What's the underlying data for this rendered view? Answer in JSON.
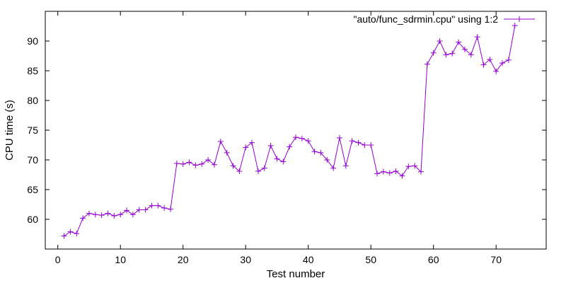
{
  "chart_data": {
    "type": "line",
    "xlabel": "Test number",
    "ylabel": "CPU time (s)",
    "xlim": [
      -2,
      78
    ],
    "ylim": [
      55,
      95
    ],
    "xticks": [
      0,
      10,
      20,
      30,
      40,
      50,
      60,
      70
    ],
    "yticks": [
      60,
      65,
      70,
      75,
      80,
      85,
      90
    ],
    "grid": false,
    "legend_position": "top-right",
    "series_color": "#9400d3",
    "series": [
      {
        "name": "\"auto/func_sdrmin.cpu\" using 1:2",
        "x": [
          1,
          2,
          3,
          4,
          5,
          6,
          7,
          8,
          9,
          10,
          11,
          12,
          13,
          14,
          15,
          16,
          17,
          18,
          19,
          20,
          21,
          22,
          23,
          24,
          25,
          26,
          27,
          28,
          29,
          30,
          31,
          32,
          33,
          34,
          35,
          36,
          37,
          38,
          39,
          40,
          41,
          42,
          43,
          44,
          45,
          46,
          47,
          48,
          49,
          50,
          51,
          52,
          53,
          54,
          55,
          56,
          57,
          58,
          59,
          60,
          61,
          62,
          63,
          64,
          65,
          66,
          67,
          68,
          69,
          70,
          71,
          72,
          73
        ],
        "values": [
          57.2,
          57.9,
          57.6,
          60.2,
          61.0,
          60.8,
          60.7,
          61.0,
          60.6,
          60.8,
          61.5,
          60.8,
          61.6,
          61.6,
          62.3,
          62.3,
          61.9,
          61.7,
          69.4,
          69.3,
          69.6,
          69.1,
          69.3,
          70.0,
          69.2,
          73.1,
          71.2,
          69.0,
          68.1,
          72.1,
          72.9,
          68.1,
          68.6,
          72.4,
          70.2,
          69.7,
          72.2,
          73.8,
          73.6,
          73.2,
          71.4,
          71.2,
          70.0,
          68.6,
          73.7,
          69.0,
          73.2,
          72.9,
          72.5,
          72.5,
          67.7,
          68.0,
          67.8,
          68.1,
          67.3,
          68.9,
          69.0,
          68.0,
          86.1,
          88.0,
          90.0,
          87.7,
          87.9,
          89.8,
          88.6,
          87.7,
          90.7,
          86.0,
          86.9,
          84.9,
          86.3,
          86.8,
          92.6
        ]
      }
    ]
  }
}
